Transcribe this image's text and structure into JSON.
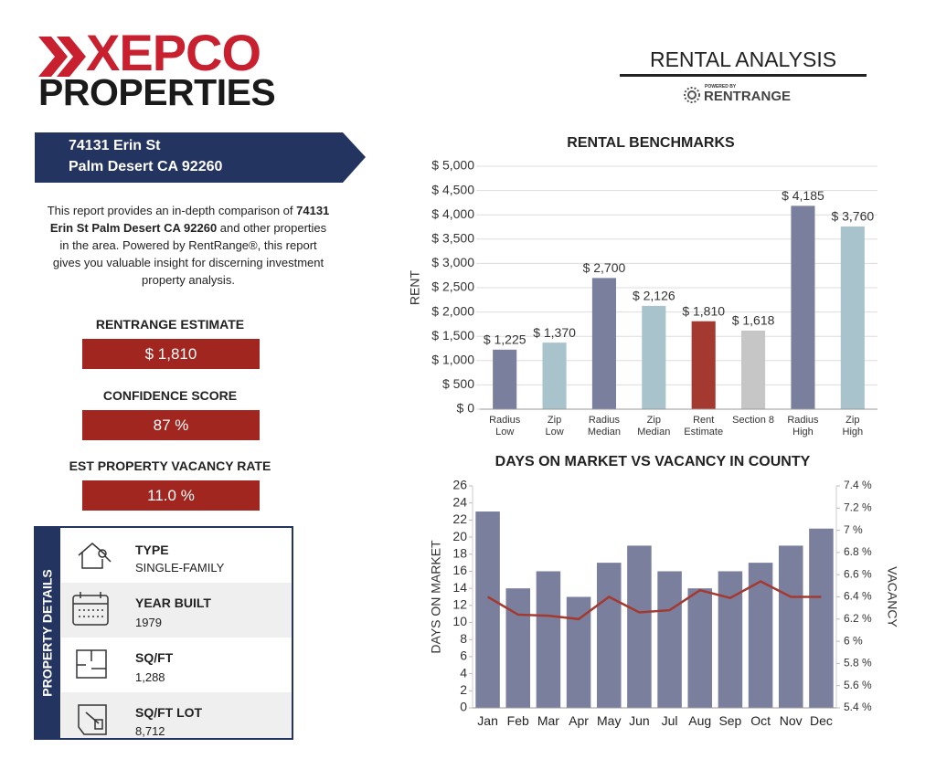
{
  "header": {
    "logo_top": "XEPCO",
    "logo_bottom": "PROPERTIES",
    "report_title": "RENTAL ANALYSIS",
    "powered_by": "POWERED BY",
    "powered_brand": "RENTRANGE"
  },
  "address": {
    "line1": "74131 Erin St",
    "line2": "Palm Desert CA 92260"
  },
  "intro": {
    "before": "This report provides an in-depth comparison of ",
    "bold": "74131 Erin St Palm Desert CA 92260",
    "after": " and other properties in the area. Powered by RentRange®, this report gives you valuable insight for discerning investment property analysis."
  },
  "metrics": [
    {
      "label": "RENTRANGE ESTIMATE",
      "value": "$ 1,810"
    },
    {
      "label": "CONFIDENCE SCORE",
      "value": "87 %"
    },
    {
      "label": "EST PROPERTY VACANCY RATE",
      "value": "11.0 %"
    }
  ],
  "property_details": {
    "title": "PROPERTY DETAILS",
    "items": [
      {
        "label": "TYPE",
        "value": "SINGLE-FAMILY"
      },
      {
        "label": "YEAR BUILT",
        "value": "1979"
      },
      {
        "label": "SQ/FT",
        "value": "1,288"
      },
      {
        "label": "SQ/FT LOT",
        "value": "8,712"
      }
    ]
  },
  "chart_data": [
    {
      "type": "bar",
      "title": "RENTAL BENCHMARKS",
      "y_label": "RENT",
      "categories": [
        "Radius\nLow",
        "Zip\nLow",
        "Radius\nMedian",
        "Zip\nMedian",
        "Rent\nEstimate",
        "Section 8",
        "Radius\nHigh",
        "Zip\nHigh"
      ],
      "values": [
        1225,
        1370,
        2700,
        2126,
        1810,
        1618,
        4185,
        3760
      ],
      "value_labels": [
        "$ 1,225",
        "$ 1,370",
        "$ 2,700",
        "$ 2,126",
        "$ 1,810",
        "$ 1,618",
        "$ 4,185",
        "$ 3,760"
      ],
      "colors": [
        "#7b7f9e",
        "#a8c3cc",
        "#7b7f9e",
        "#a8c3cc",
        "#a3392f",
        "#c6c6c6",
        "#7b7f9e",
        "#a8c3cc"
      ],
      "ylim": [
        0,
        5000
      ],
      "yticks": [
        {
          "value": 0,
          "label": "$ 0"
        },
        {
          "value": 500,
          "label": "$ 500"
        },
        {
          "value": 1000,
          "label": "$ 1,000"
        },
        {
          "value": 1500,
          "label": "$ 1,500"
        },
        {
          "value": 2000,
          "label": "$ 2,000"
        },
        {
          "value": 2500,
          "label": "$ 2,500"
        },
        {
          "value": 3000,
          "label": "$ 3,000"
        },
        {
          "value": 3500,
          "label": "$ 3,500"
        },
        {
          "value": 4000,
          "label": "$ 4,000"
        },
        {
          "value": 4500,
          "label": "$ 4,500"
        },
        {
          "value": 5000,
          "label": "$ 5,000"
        }
      ],
      "grid": true
    },
    {
      "type": "combo",
      "title": "DAYS ON MARKET VS VACANCY IN COUNTY",
      "y_label": "DAYS ON MARKET",
      "y2_label": "VACANCY",
      "categories": [
        "Jan",
        "Feb",
        "Mar",
        "Apr",
        "May",
        "Jun",
        "Jul",
        "Aug",
        "Sep",
        "Oct",
        "Nov",
        "Dec"
      ],
      "series": [
        {
          "color": "#7b7f9e",
          "values": [
            23,
            14,
            16,
            13,
            17,
            19,
            16,
            14,
            16,
            17,
            19,
            21
          ]
        },
        {
          "color": "#a3392f",
          "axis": "y2",
          "values": [
            6.4,
            6.24,
            6.23,
            6.2,
            6.4,
            6.26,
            6.28,
            6.46,
            6.39,
            6.54,
            6.4,
            6.4
          ]
        }
      ],
      "ylim": [
        0,
        26
      ],
      "yticks": [
        0,
        2,
        4,
        6,
        8,
        10,
        12,
        14,
        16,
        18,
        20,
        22,
        24,
        26
      ],
      "y2lim": [
        5.4,
        7.4
      ],
      "y2ticks": [
        {
          "value": 5.4,
          "label": "5.4 %"
        },
        {
          "value": 5.6,
          "label": "5.6 %"
        },
        {
          "value": 5.8,
          "label": "5.8 %"
        },
        {
          "value": 6,
          "label": "6 %"
        },
        {
          "value": 6.2,
          "label": "6.2 %"
        },
        {
          "value": 6.4,
          "label": "6.4 %"
        },
        {
          "value": 6.6,
          "label": "6.6 %"
        },
        {
          "value": 6.8,
          "label": "6.8 %"
        },
        {
          "value": 7,
          "label": "7 %"
        },
        {
          "value": 7.2,
          "label": "7.2 %"
        },
        {
          "value": 7.4,
          "label": "7.4 %"
        }
      ],
      "grid": false
    }
  ]
}
